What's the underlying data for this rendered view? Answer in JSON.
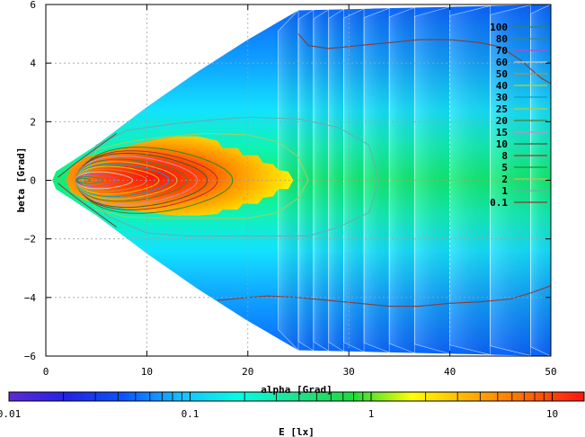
{
  "chart_data": {
    "type": "heatmap",
    "xlabel": "alpha [Grad]",
    "ylabel": "beta [Grad]",
    "colorbar_label": "E [lx]",
    "xlim": [
      0,
      50
    ],
    "ylim": [
      6,
      -6
    ],
    "x_ticks": [
      0,
      10,
      20,
      30,
      40,
      50
    ],
    "y_ticks": [
      -6,
      -4,
      -2,
      0,
      2,
      4,
      6
    ],
    "grid": true,
    "legend_position": "top-right",
    "colorbar": {
      "scale": "log",
      "range": [
        0.01,
        15
      ],
      "ticks": [
        {
          "value": 0.01,
          "label": "0.01"
        },
        {
          "value": 0.1,
          "label": "0.1"
        },
        {
          "value": 1,
          "label": "1"
        },
        {
          "value": 10,
          "label": "10"
        }
      ],
      "stops": [
        "#5e2ad4",
        "#2222e8",
        "#0b55ff",
        "#17c1ff",
        "#00ffe5",
        "#1fe28e",
        "#1ddb3a",
        "#ffff00",
        "#ffb200",
        "#ff6a00",
        "#ff1414"
      ]
    },
    "contour_levels": [
      {
        "label": "100",
        "color": "#2d8d52"
      },
      {
        "label": "80",
        "color": "#3a8a7d"
      },
      {
        "label": "70",
        "color": "#bf45c8"
      },
      {
        "label": "60",
        "color": "#c6c6c6"
      },
      {
        "label": "50",
        "color": "#c98a3a"
      },
      {
        "label": "40",
        "color": "#d0d000"
      },
      {
        "label": "30",
        "color": "#0d9ec9"
      },
      {
        "label": "25",
        "color": "#b9c93c"
      },
      {
        "label": "20",
        "color": "#4a7d3a"
      },
      {
        "label": "15",
        "color": "#d28ac0"
      },
      {
        "label": "10",
        "color": "#3c5a3c"
      },
      {
        "label": "8",
        "color": "#aa3030"
      },
      {
        "label": "5",
        "color": "#209020"
      },
      {
        "label": "2",
        "color": "#a0d060"
      },
      {
        "label": "1",
        "color": "#60b0b0"
      },
      {
        "label": "0.1",
        "color": "#8b3a3a"
      }
    ],
    "region": {
      "apex": [
        1,
        0
      ],
      "edges": [
        {
          "alpha": 1,
          "beta_max": 0.3
        },
        {
          "alpha": 5,
          "beta_max": 1.2
        },
        {
          "alpha": 10,
          "beta_max": 2.5
        },
        {
          "alpha": 15,
          "beta_max": 3.7
        },
        {
          "alpha": 20,
          "beta_max": 4.8
        },
        {
          "alpha": 25,
          "beta_max": 5.8
        },
        {
          "alpha": 50,
          "beta_max": 6
        }
      ]
    }
  }
}
